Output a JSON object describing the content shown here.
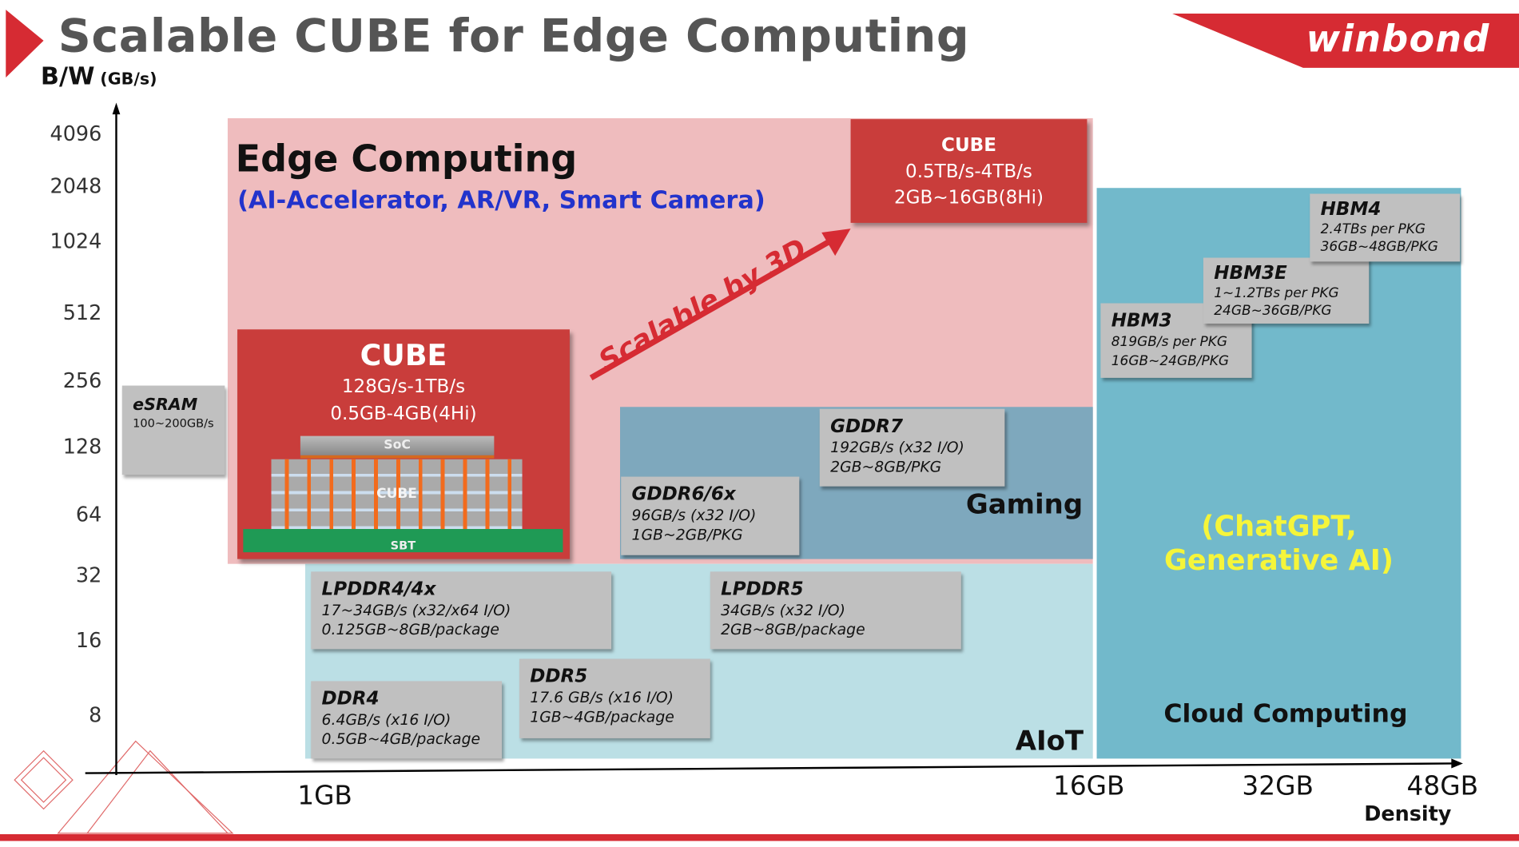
{
  "title": "Scalable CUBE for Edge Computing",
  "logo": "winbond",
  "colors": {
    "brand_red": "#d62b33",
    "cube_red": "#c93d3b",
    "edge_pink": "#efbcbe",
    "aiot_cyan": "#bbdfe5",
    "gaming_blue": "#7ea8bd",
    "cloud_teal": "#72b9cb",
    "box_gray": "#c0c0c0",
    "subtitle_blue": "#2233cc",
    "chatgpt_yellow": "#f5f53a"
  },
  "y_axis": {
    "label": "B/W",
    "unit": "(GB/s)",
    "ticks": [
      "4096",
      "2048",
      "1024",
      "512",
      "256",
      "128",
      "64",
      "32",
      "16",
      "8"
    ]
  },
  "x_axis": {
    "label": "Density",
    "ticks": [
      "1GB",
      "16GB",
      "32GB",
      "48GB"
    ]
  },
  "regions": {
    "edge": {
      "title": "Edge Computing",
      "subtitle": "(AI-Accelerator, AR/VR, Smart Camera)"
    },
    "gaming": {
      "title": "Gaming"
    },
    "aiot": {
      "title": "AIoT"
    },
    "cloud": {
      "title": "Cloud Computing",
      "note_line1": "(ChatGPT,",
      "note_line2": "Generative AI)"
    }
  },
  "arrow_label": "Scalable by 3D",
  "cube_small": {
    "title": "CUBE",
    "line1": "128G/s-1TB/s",
    "line2": "0.5GB-4GB(4Hi)",
    "diagram": {
      "soc": "SoC",
      "cube": "CUBE",
      "sbt": "SBT"
    }
  },
  "cube_large": {
    "title": "CUBE",
    "line1": "0.5TB/s-4TB/s",
    "line2": "2GB~16GB(8Hi)"
  },
  "memories": {
    "esram": {
      "name": "eSRAM",
      "line1": "100~200GB/s"
    },
    "gddr7": {
      "name": "GDDR7",
      "line1": "192GB/s (x32 I/O)",
      "line2": "2GB~8GB/PKG"
    },
    "gddr6": {
      "name": "GDDR6/6x",
      "line1": "96GB/s (x32 I/O)",
      "line2": "1GB~2GB/PKG"
    },
    "lpddr4": {
      "name": "LPDDR4/4x",
      "line1": "17~34GB/s (x32/x64 I/O)",
      "line2": "0.125GB~8GB/package"
    },
    "lpddr5": {
      "name": "LPDDR5",
      "line1": "34GB/s (x32 I/O)",
      "line2": "2GB~8GB/package"
    },
    "ddr5": {
      "name": "DDR5",
      "line1": "17.6 GB/s (x16 I/O)",
      "line2": "1GB~4GB/package"
    },
    "ddr4": {
      "name": "DDR4",
      "line1": "6.4GB/s (x16 I/O)",
      "line2": "0.5GB~4GB/package"
    },
    "hbm3": {
      "name": "HBM3",
      "line1": "819GB/s per PKG",
      "line2": "16GB~24GB/PKG"
    },
    "hbm3e": {
      "name": "HBM3E",
      "line1": "1~1.2TBs per PKG",
      "line2": "24GB~36GB/PKG"
    },
    "hbm4": {
      "name": "HBM4",
      "line1": "2.4TBs per PKG",
      "line2": "36GB~48GB/PKG"
    }
  }
}
